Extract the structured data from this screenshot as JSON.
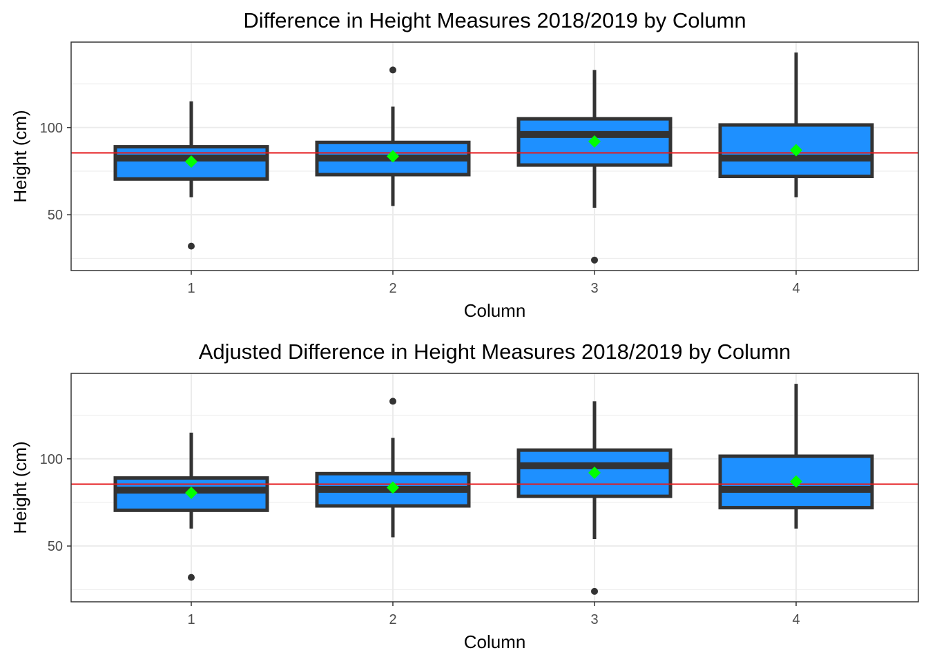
{
  "colors": {
    "box_fill": "#1E90FF",
    "box_stroke": "#333333",
    "mean_marker": "#00FF00",
    "ref_line": "#E41A1C",
    "grid": "#EBEBEB",
    "panel_border": "#333333",
    "tick_text": "#4D4D4D",
    "label_text": "#000000"
  },
  "chart_data": [
    {
      "type": "boxplot",
      "title": "Difference in Height Measures 2018/2019 by Column",
      "xlabel": "Column",
      "ylabel": "Height (cm)",
      "categories": [
        "1",
        "2",
        "3",
        "4"
      ],
      "ylim": [
        18,
        149
      ],
      "yticks": [
        50,
        100
      ],
      "ytick_labels": [
        "50",
        "100"
      ],
      "grid": true,
      "reference_line": 85.5,
      "boxes": [
        {
          "category": "1",
          "whisker_low": 60,
          "q1": 70.5,
          "median": 82.5,
          "q3": 89,
          "whisker_high": 115,
          "mean": 80.5,
          "outliers": [
            32
          ]
        },
        {
          "category": "2",
          "whisker_low": 55,
          "q1": 73,
          "median": 82.5,
          "q3": 91.5,
          "whisker_high": 112,
          "mean": 83.5,
          "outliers": [
            133
          ]
        },
        {
          "category": "3",
          "whisker_low": 54,
          "q1": 78.5,
          "median": 96,
          "q3": 105,
          "whisker_high": 133,
          "mean": 92,
          "outliers": [
            24
          ]
        },
        {
          "category": "4",
          "whisker_low": 60,
          "q1": 72,
          "median": 82.5,
          "q3": 101.5,
          "whisker_high": 143,
          "mean": 87,
          "outliers": []
        }
      ]
    },
    {
      "type": "boxplot",
      "title": "Adjusted Difference in Height Measures 2018/2019 by Column",
      "xlabel": "Column",
      "ylabel": "Height (cm)",
      "categories": [
        "1",
        "2",
        "3",
        "4"
      ],
      "ylim": [
        18,
        149
      ],
      "yticks": [
        50,
        100
      ],
      "ytick_labels": [
        "50",
        "100"
      ],
      "grid": true,
      "reference_line": 85.5,
      "boxes": [
        {
          "category": "1",
          "whisker_low": 60,
          "q1": 70.5,
          "median": 82,
          "q3": 89,
          "whisker_high": 115,
          "mean": 80.5,
          "outliers": [
            32
          ]
        },
        {
          "category": "2",
          "whisker_low": 55,
          "q1": 73,
          "median": 82.5,
          "q3": 91.5,
          "whisker_high": 112,
          "mean": 83.5,
          "outliers": [
            133
          ]
        },
        {
          "category": "3",
          "whisker_low": 54,
          "q1": 78.5,
          "median": 96,
          "q3": 105,
          "whisker_high": 133,
          "mean": 92,
          "outliers": [
            24
          ]
        },
        {
          "category": "4",
          "whisker_low": 60,
          "q1": 72,
          "median": 82.5,
          "q3": 101.5,
          "whisker_high": 143,
          "mean": 87,
          "outliers": []
        }
      ]
    }
  ]
}
